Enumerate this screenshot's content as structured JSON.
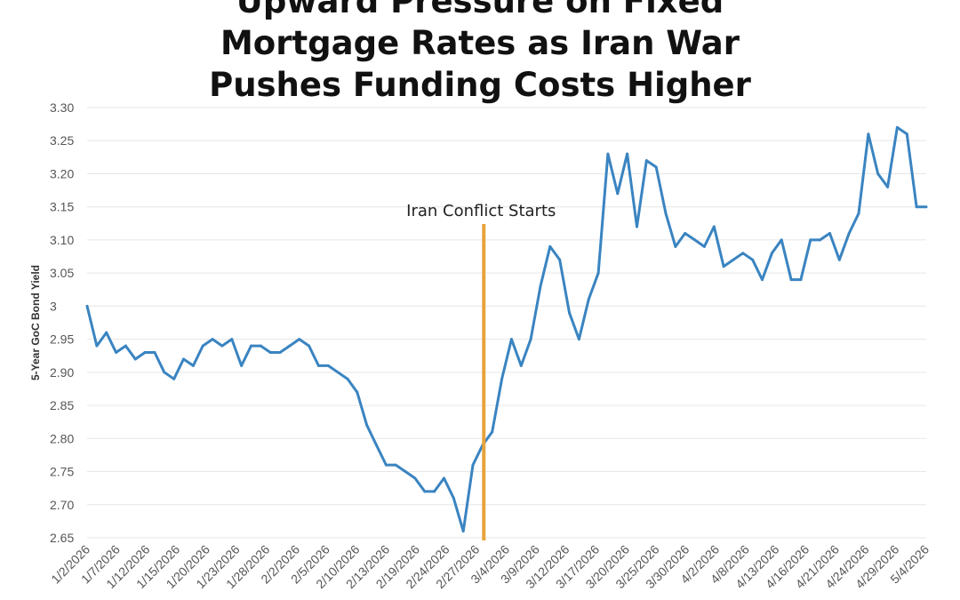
{
  "chart_data": {
    "type": "line",
    "title_lines": [
      "Upward Pressure on Fixed",
      "Mortgage Rates as Iran War",
      "Pushes Funding Costs Higher"
    ],
    "ylabel": "5-Year GoC Bond Yield",
    "xlabel": "",
    "ylim": [
      2.65,
      3.3
    ],
    "yticks": [
      "2.65",
      "2.70",
      "2.75",
      "2.80",
      "2.85",
      "2.90",
      "2.95",
      "3",
      "3.05",
      "3.10",
      "3.15",
      "3.20",
      "3.25",
      "3.30"
    ],
    "x_tick_labels": [
      "1/2/2026",
      "1/7/2026",
      "1/12/2026",
      "1/15/2026",
      "1/20/2026",
      "1/23/2026",
      "1/28/2026",
      "2/2/2026",
      "2/5/2026",
      "2/10/2026",
      "2/13/2026",
      "2/19/2026",
      "2/24/2026",
      "2/27/2026",
      "3/4/2026",
      "3/9/2026",
      "3/12/2026",
      "3/17/2026",
      "3/20/2026",
      "3/25/2026",
      "3/30/2026",
      "4/2/2026",
      "4/8/2026",
      "4/13/2026",
      "4/16/2026",
      "4/21/2026",
      "4/24/2026",
      "4/29/2026",
      "5/4/2026"
    ],
    "grid": true,
    "series": [
      {
        "color": "#3a84c1",
        "values": [
          3.0,
          2.94,
          2.96,
          2.93,
          2.94,
          2.92,
          2.93,
          2.93,
          2.9,
          2.89,
          2.92,
          2.91,
          2.94,
          2.95,
          2.94,
          2.95,
          2.91,
          2.94,
          2.94,
          2.93,
          2.93,
          2.94,
          2.95,
          2.94,
          2.91,
          2.91,
          2.9,
          2.89,
          2.87,
          2.82,
          2.79,
          2.76,
          2.76,
          2.75,
          2.74,
          2.72,
          2.72,
          2.74,
          2.71,
          2.66,
          2.76,
          2.79,
          2.81,
          2.89,
          2.95,
          2.91,
          2.95,
          3.03,
          3.09,
          3.07,
          2.99,
          2.95,
          3.01,
          3.05,
          3.23,
          3.17,
          3.23,
          3.12,
          3.22,
          3.21,
          3.14,
          3.09,
          3.11,
          3.1,
          3.09,
          3.12,
          3.06,
          3.07,
          3.08,
          3.07,
          3.04,
          3.08,
          3.1,
          3.04,
          3.04,
          3.1,
          3.1,
          3.11,
          3.07,
          3.11,
          3.14,
          3.26,
          3.2,
          3.18,
          3.27,
          3.26,
          3.15,
          3.15
        ]
      }
    ],
    "annotation": {
      "text": "Iran Conflict Starts",
      "at_label": "2/27/2026",
      "color": "#e8a33d"
    }
  }
}
